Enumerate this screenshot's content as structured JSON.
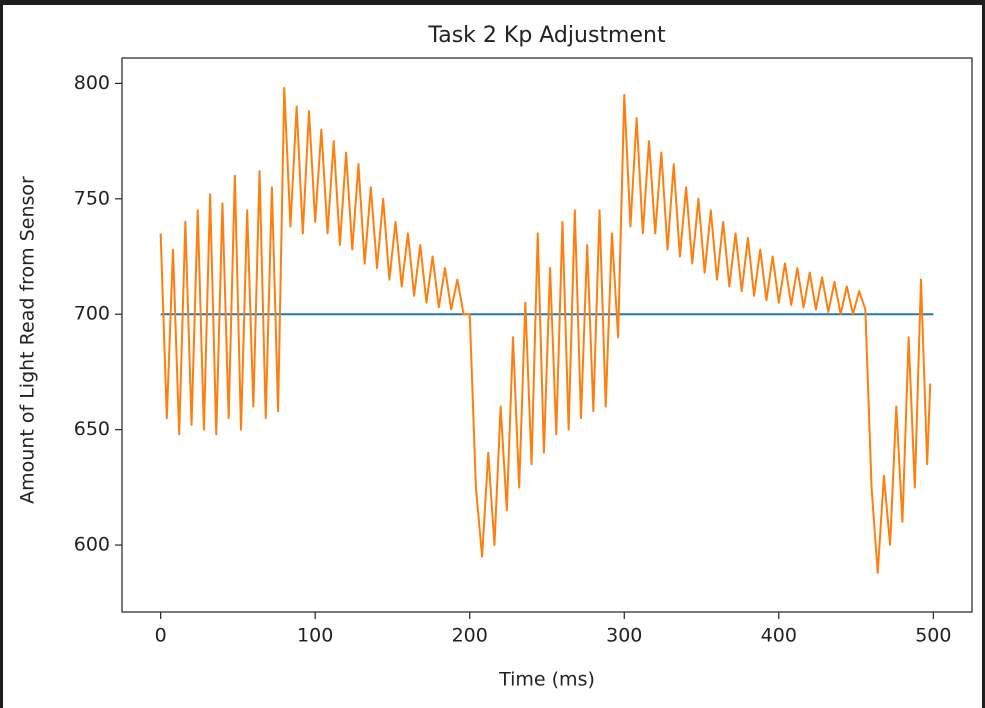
{
  "chart_data": {
    "type": "line",
    "title": "Task 2 Kp Adjustment",
    "x_label": "Time (ms)",
    "y_label": "Amount of Light Read from Sensor",
    "xlim": [
      -25,
      525
    ],
    "ylim": [
      571,
      811
    ],
    "xticks": [
      0,
      100,
      200,
      300,
      400,
      500
    ],
    "yticks": [
      600,
      650,
      700,
      750,
      800
    ],
    "series": [
      {
        "color": "#1f77b4",
        "x": [
          0,
          500
        ],
        "values": [
          700,
          700
        ]
      },
      {
        "color": "#ff7f0e",
        "x": [
          0,
          4,
          8,
          12,
          16,
          20,
          24,
          28,
          32,
          36,
          40,
          44,
          48,
          52,
          56,
          60,
          64,
          68,
          72,
          76,
          80,
          84,
          88,
          92,
          96,
          100,
          104,
          108,
          112,
          116,
          120,
          124,
          128,
          132,
          136,
          140,
          144,
          148,
          152,
          156,
          160,
          164,
          168,
          172,
          176,
          180,
          184,
          188,
          192,
          196,
          200,
          204,
          208,
          212,
          216,
          220,
          224,
          228,
          232,
          236,
          240,
          244,
          248,
          252,
          256,
          260,
          264,
          268,
          272,
          276,
          280,
          284,
          288,
          292,
          296,
          300,
          304,
          308,
          312,
          316,
          320,
          324,
          328,
          332,
          336,
          340,
          344,
          348,
          352,
          356,
          360,
          364,
          368,
          372,
          376,
          380,
          384,
          388,
          392,
          396,
          400,
          404,
          408,
          412,
          416,
          420,
          424,
          428,
          432,
          436,
          440,
          444,
          448,
          452,
          456,
          460,
          464,
          468,
          472,
          476,
          480,
          484,
          488,
          492,
          496,
          498
        ],
        "values": [
          735,
          655,
          728,
          648,
          740,
          652,
          745,
          650,
          752,
          648,
          748,
          655,
          760,
          650,
          745,
          660,
          762,
          655,
          755,
          658,
          798,
          738,
          790,
          735,
          788,
          740,
          780,
          735,
          775,
          730,
          770,
          728,
          765,
          722,
          755,
          720,
          750,
          715,
          740,
          712,
          735,
          708,
          730,
          705,
          725,
          703,
          720,
          702,
          715,
          700,
          700,
          625,
          595,
          640,
          600,
          660,
          615,
          690,
          625,
          705,
          635,
          735,
          640,
          720,
          648,
          740,
          650,
          745,
          655,
          730,
          658,
          745,
          660,
          735,
          690,
          795,
          738,
          785,
          735,
          775,
          735,
          770,
          728,
          765,
          725,
          755,
          722,
          750,
          718,
          745,
          715,
          740,
          712,
          735,
          710,
          733,
          708,
          728,
          706,
          725,
          705,
          722,
          704,
          720,
          703,
          718,
          702,
          716,
          701,
          714,
          700,
          712,
          700,
          710,
          702,
          625,
          588,
          630,
          600,
          660,
          610,
          690,
          625,
          715,
          635,
          670
        ]
      }
    ]
  }
}
